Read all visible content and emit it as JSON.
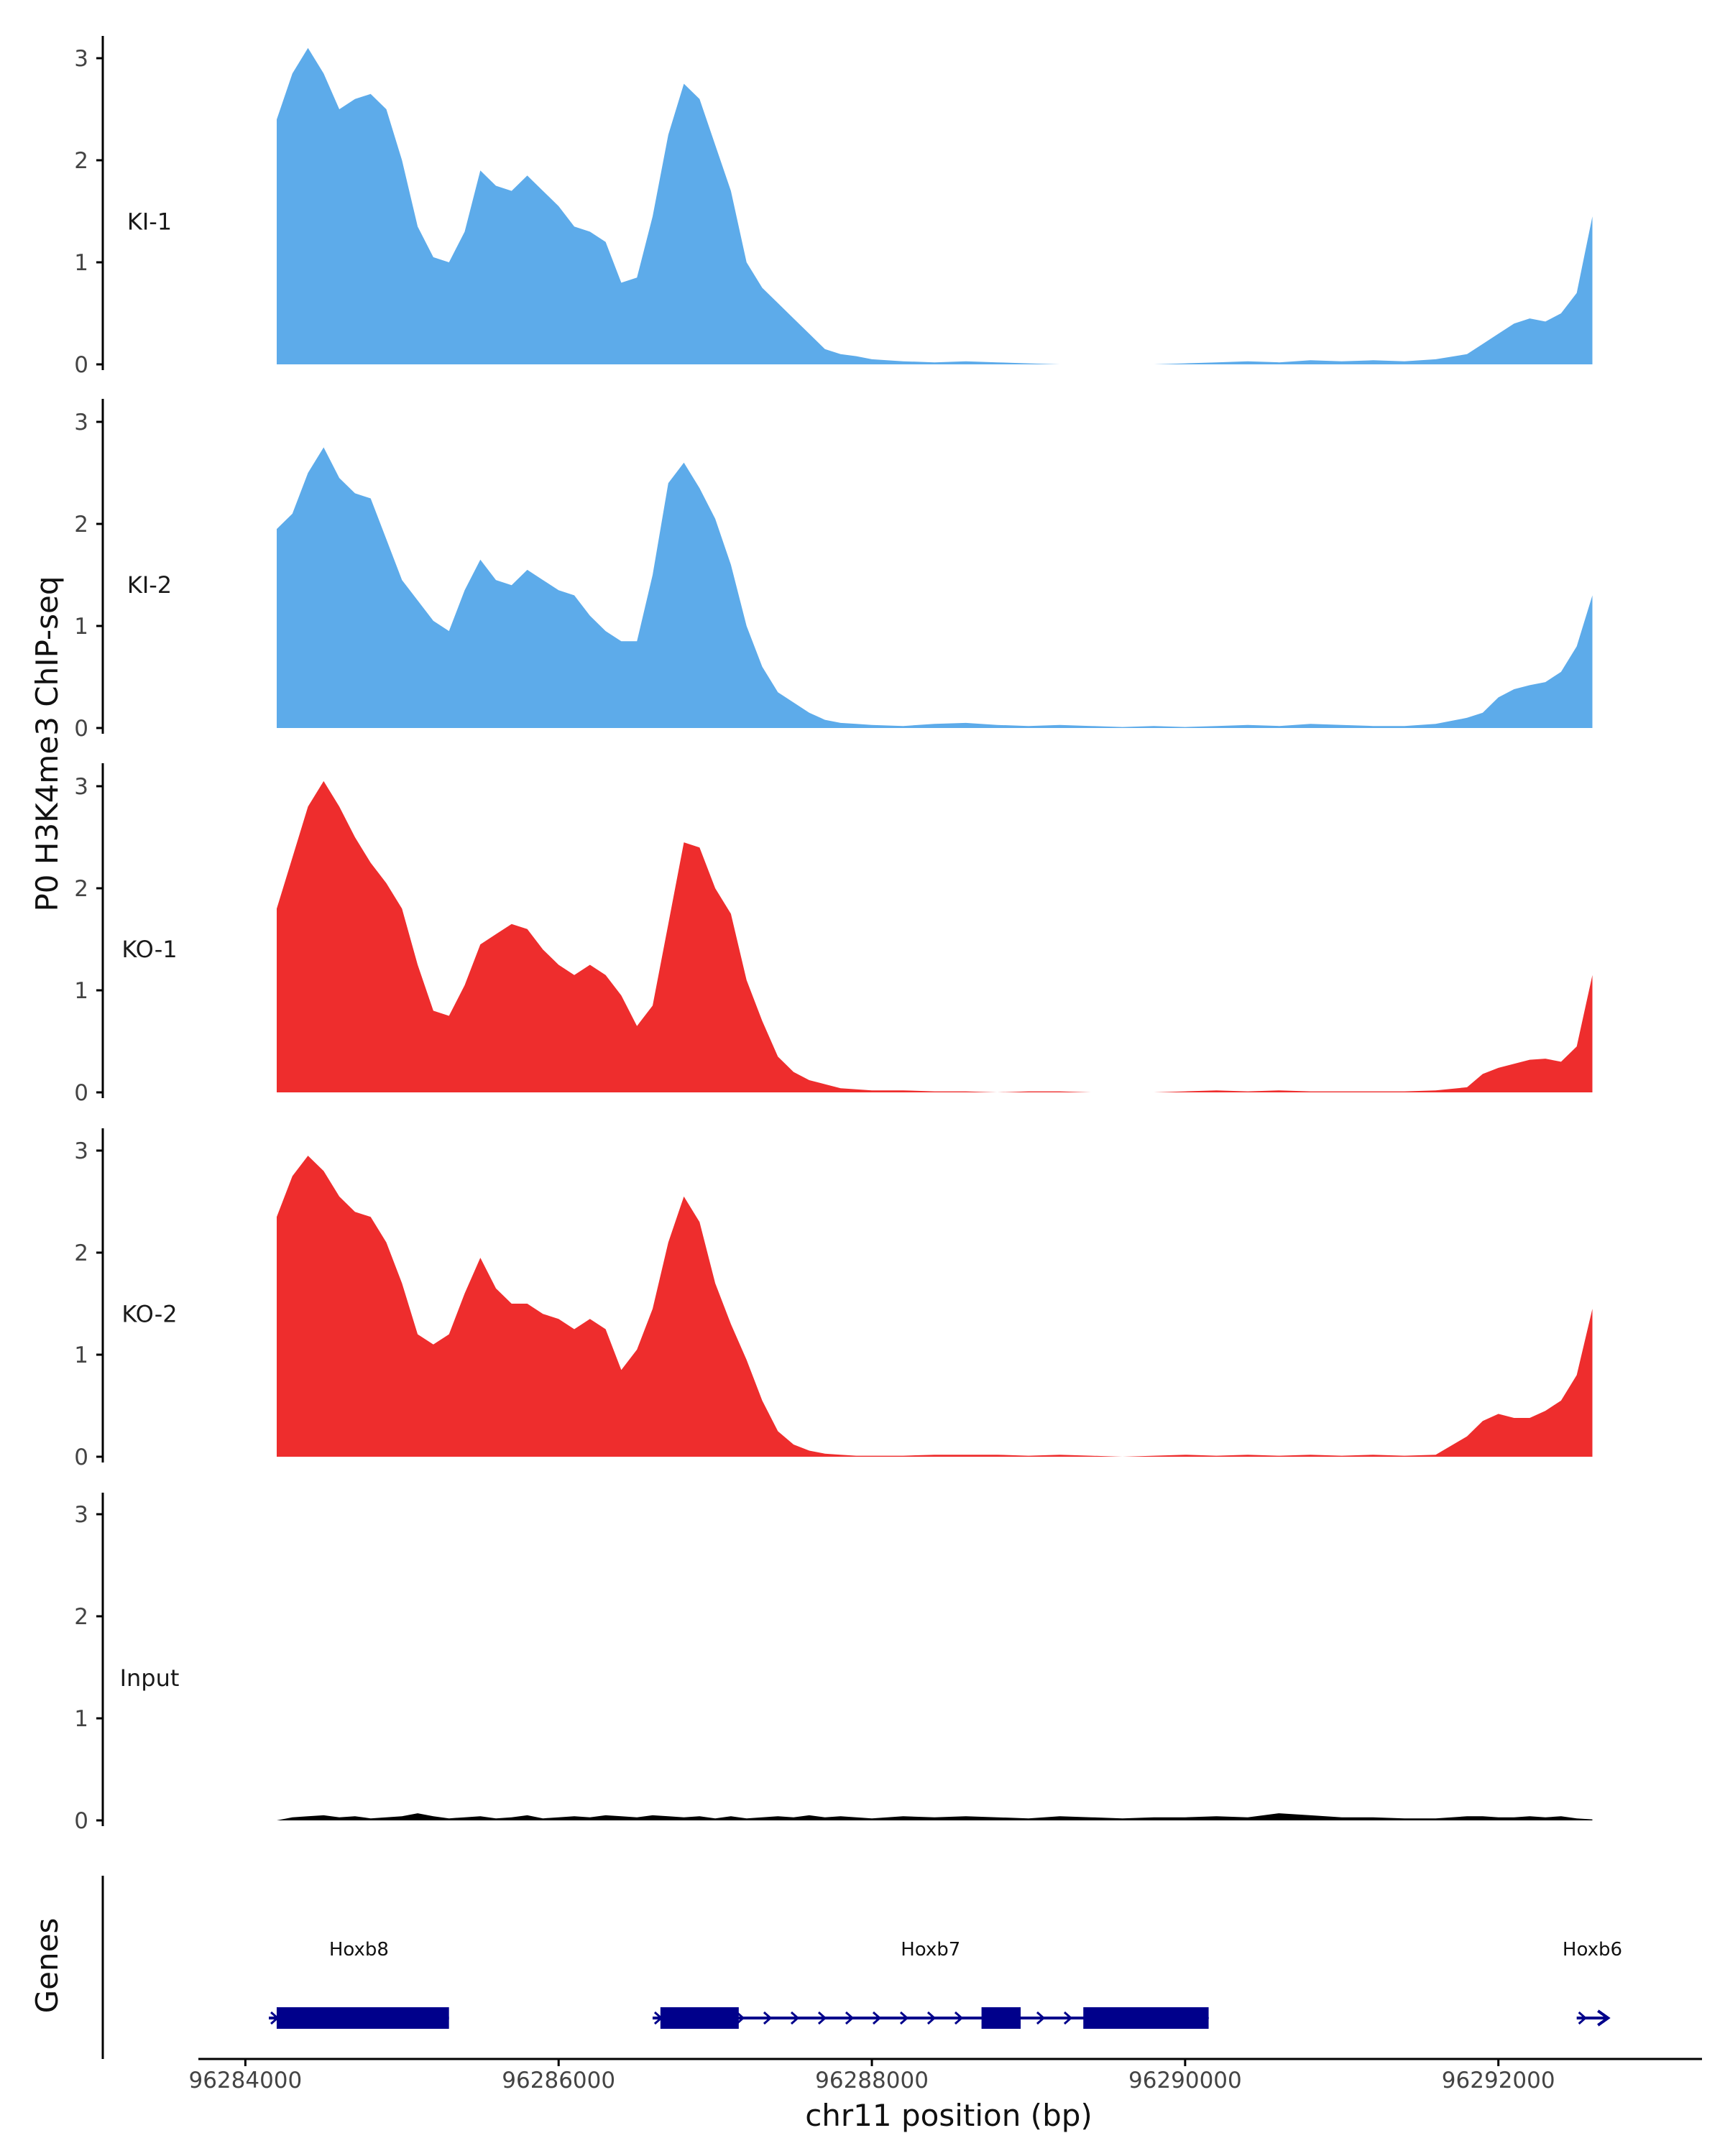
{
  "figure": {
    "ylabel": "P0 H3K4me3 ChIP-seq",
    "genes_label": "Genes",
    "xlabel": "chr11 position (bp)"
  },
  "colors": {
    "ki": "#5dabea",
    "ko": "#ee2d2d",
    "input": "#000000",
    "gene": "#00008b",
    "axis": "#000000"
  },
  "chart_data": {
    "type": "area",
    "x_range": [
      96283700,
      96293300
    ],
    "x_ticks": [
      96284000,
      96286000,
      96288000,
      96290000,
      96292000
    ],
    "x_tick_labels": [
      "96284000",
      "96286000",
      "96288000",
      "96290000",
      "96292000"
    ],
    "y_range": [
      0,
      3.2
    ],
    "y_ticks": [
      0,
      1,
      2,
      3
    ],
    "y_tick_labels": [
      "0",
      "1",
      "2",
      "3"
    ],
    "x": [
      96284200,
      96284300,
      96284400,
      96284500,
      96284600,
      96284700,
      96284800,
      96284900,
      96285000,
      96285100,
      96285200,
      96285300,
      96285400,
      96285500,
      96285600,
      96285700,
      96285800,
      96285900,
      96286000,
      96286100,
      96286200,
      96286300,
      96286400,
      96286500,
      96286600,
      96286700,
      96286800,
      96286900,
      96287000,
      96287100,
      96287200,
      96287300,
      96287400,
      96287500,
      96287600,
      96287700,
      96287800,
      96287900,
      96288000,
      96288200,
      96288400,
      96288600,
      96288800,
      96289000,
      96289200,
      96289400,
      96289600,
      96289800,
      96290000,
      96290200,
      96290400,
      96290600,
      96290800,
      96291000,
      96291200,
      96291400,
      96291600,
      96291800,
      96291900,
      96292000,
      96292100,
      96292200,
      96292300,
      96292400,
      96292500,
      96292600
    ],
    "series": [
      {
        "name": "KI-1",
        "color_key": "ki",
        "values": [
          2.4,
          2.85,
          3.1,
          2.85,
          2.5,
          2.6,
          2.65,
          2.5,
          2.0,
          1.35,
          1.05,
          1.0,
          1.3,
          1.9,
          1.75,
          1.7,
          1.85,
          1.7,
          1.55,
          1.35,
          1.3,
          1.2,
          0.8,
          0.85,
          1.45,
          2.25,
          2.75,
          2.6,
          2.15,
          1.7,
          1.0,
          0.75,
          0.6,
          0.45,
          0.3,
          0.15,
          0.1,
          0.08,
          0.05,
          0.03,
          0.02,
          0.03,
          0.02,
          0.01,
          0.0,
          0.0,
          0.0,
          0.0,
          0.01,
          0.02,
          0.03,
          0.02,
          0.04,
          0.03,
          0.04,
          0.03,
          0.05,
          0.1,
          0.2,
          0.3,
          0.4,
          0.45,
          0.42,
          0.5,
          0.7,
          1.45
        ]
      },
      {
        "name": "KI-2",
        "color_key": "ki",
        "values": [
          1.95,
          2.1,
          2.5,
          2.75,
          2.45,
          2.3,
          2.25,
          1.85,
          1.45,
          1.25,
          1.05,
          0.95,
          1.35,
          1.65,
          1.45,
          1.4,
          1.55,
          1.45,
          1.35,
          1.3,
          1.1,
          0.95,
          0.85,
          0.85,
          1.5,
          2.4,
          2.6,
          2.35,
          2.05,
          1.6,
          1.0,
          0.6,
          0.35,
          0.25,
          0.15,
          0.08,
          0.05,
          0.04,
          0.03,
          0.02,
          0.04,
          0.05,
          0.03,
          0.02,
          0.03,
          0.02,
          0.01,
          0.02,
          0.01,
          0.02,
          0.03,
          0.02,
          0.04,
          0.03,
          0.02,
          0.02,
          0.04,
          0.1,
          0.15,
          0.3,
          0.38,
          0.42,
          0.45,
          0.55,
          0.8,
          1.3
        ]
      },
      {
        "name": "KO-1",
        "color_key": "ko",
        "values": [
          1.8,
          2.3,
          2.8,
          3.05,
          2.8,
          2.5,
          2.25,
          2.05,
          1.8,
          1.25,
          0.8,
          0.75,
          1.05,
          1.45,
          1.55,
          1.65,
          1.6,
          1.4,
          1.25,
          1.15,
          1.25,
          1.15,
          0.95,
          0.65,
          0.85,
          1.65,
          2.45,
          2.4,
          2.0,
          1.75,
          1.1,
          0.7,
          0.35,
          0.2,
          0.12,
          0.08,
          0.04,
          0.03,
          0.02,
          0.02,
          0.01,
          0.01,
          0.0,
          0.01,
          0.01,
          0.0,
          0.0,
          0.0,
          0.01,
          0.02,
          0.01,
          0.02,
          0.01,
          0.01,
          0.01,
          0.01,
          0.02,
          0.05,
          0.18,
          0.24,
          0.28,
          0.32,
          0.33,
          0.3,
          0.45,
          1.15
        ]
      },
      {
        "name": "KO-2",
        "color_key": "ko",
        "values": [
          2.35,
          2.75,
          2.95,
          2.8,
          2.55,
          2.4,
          2.35,
          2.1,
          1.7,
          1.2,
          1.1,
          1.2,
          1.6,
          1.95,
          1.65,
          1.5,
          1.5,
          1.4,
          1.35,
          1.25,
          1.35,
          1.25,
          0.85,
          1.05,
          1.45,
          2.1,
          2.55,
          2.3,
          1.7,
          1.3,
          0.95,
          0.55,
          0.25,
          0.12,
          0.06,
          0.03,
          0.02,
          0.01,
          0.01,
          0.01,
          0.02,
          0.02,
          0.02,
          0.01,
          0.02,
          0.01,
          0.0,
          0.01,
          0.02,
          0.01,
          0.02,
          0.01,
          0.02,
          0.01,
          0.02,
          0.01,
          0.02,
          0.2,
          0.35,
          0.42,
          0.38,
          0.38,
          0.45,
          0.55,
          0.8,
          1.45
        ]
      },
      {
        "name": "Input",
        "color_key": "input",
        "values": [
          0.0,
          0.03,
          0.04,
          0.05,
          0.03,
          0.04,
          0.02,
          0.03,
          0.04,
          0.07,
          0.04,
          0.02,
          0.03,
          0.04,
          0.02,
          0.03,
          0.05,
          0.02,
          0.03,
          0.04,
          0.03,
          0.05,
          0.04,
          0.03,
          0.05,
          0.04,
          0.03,
          0.04,
          0.02,
          0.04,
          0.02,
          0.03,
          0.04,
          0.03,
          0.05,
          0.03,
          0.04,
          0.03,
          0.02,
          0.04,
          0.03,
          0.04,
          0.03,
          0.02,
          0.04,
          0.03,
          0.02,
          0.03,
          0.03,
          0.04,
          0.03,
          0.07,
          0.05,
          0.03,
          0.03,
          0.02,
          0.02,
          0.04,
          0.04,
          0.03,
          0.03,
          0.04,
          0.03,
          0.04,
          0.02,
          0.01
        ]
      }
    ],
    "genes": [
      {
        "name": "Hoxb8",
        "start": 96284150,
        "end": 96285300,
        "exons": [
          [
            96284200,
            96285300
          ]
        ],
        "arrow_start": 96284150
      },
      {
        "name": "Hoxb7",
        "start": 96286600,
        "end": 96290150,
        "exons": [
          [
            96286650,
            96287150
          ],
          [
            96288700,
            96288950
          ],
          [
            96289350,
            96290150
          ]
        ],
        "arrow_start": 96286650
      },
      {
        "name": "Hoxb6",
        "start": 96292500,
        "end": 96292700,
        "exons": [],
        "arrow_start": 96292500
      }
    ]
  }
}
